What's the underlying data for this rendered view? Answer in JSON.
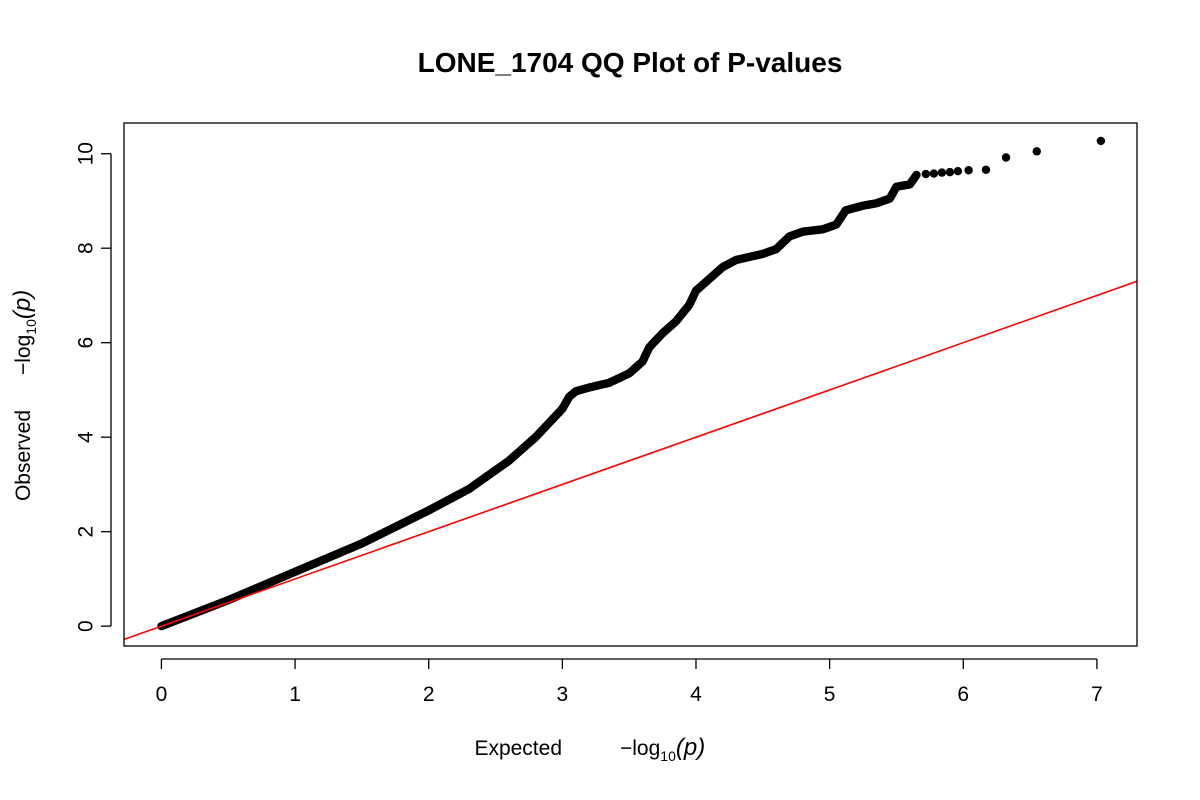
{
  "chart_data": {
    "type": "scatter",
    "title": "LONE_1704 QQ Plot of P-values",
    "xlabel": {
      "prefix": "Expected",
      "expr": "−log",
      "sub": "10",
      "arg": "(p)"
    },
    "ylabel": {
      "prefix": "Observed",
      "expr": "−log",
      "sub": "10",
      "arg": "(p)"
    },
    "xlim": [
      -0.28,
      7.3
    ],
    "ylim": [
      -0.42,
      10.65
    ],
    "xticks": [
      0,
      1,
      2,
      3,
      4,
      5,
      6,
      7
    ],
    "yticks": [
      0,
      2,
      4,
      6,
      8,
      10
    ],
    "grid": false,
    "point_color": "#000000",
    "reference_line": {
      "slope": 1,
      "intercept": 0,
      "color": "#ff0000"
    },
    "curve_points": [
      [
        0.0,
        0.0
      ],
      [
        0.5,
        0.55
      ],
      [
        1.0,
        1.15
      ],
      [
        1.5,
        1.75
      ],
      [
        2.0,
        2.45
      ],
      [
        2.3,
        2.9
      ],
      [
        2.6,
        3.5
      ],
      [
        2.8,
        4.0
      ],
      [
        3.0,
        4.6
      ],
      [
        3.05,
        4.85
      ],
      [
        3.1,
        4.97
      ],
      [
        3.2,
        5.05
      ],
      [
        3.35,
        5.15
      ],
      [
        3.5,
        5.35
      ],
      [
        3.6,
        5.6
      ],
      [
        3.65,
        5.9
      ],
      [
        3.75,
        6.2
      ],
      [
        3.85,
        6.45
      ],
      [
        3.95,
        6.8
      ],
      [
        4.0,
        7.1
      ],
      [
        4.1,
        7.35
      ],
      [
        4.2,
        7.6
      ],
      [
        4.3,
        7.75
      ],
      [
        4.5,
        7.88
      ],
      [
        4.6,
        7.98
      ],
      [
        4.7,
        8.25
      ],
      [
        4.8,
        8.35
      ],
      [
        4.95,
        8.4
      ],
      [
        5.05,
        8.5
      ],
      [
        5.12,
        8.8
      ],
      [
        5.25,
        8.9
      ],
      [
        5.35,
        8.95
      ],
      [
        5.45,
        9.05
      ],
      [
        5.5,
        9.3
      ],
      [
        5.6,
        9.35
      ],
      [
        5.65,
        9.55
      ]
    ],
    "tail_points": [
      [
        5.72,
        9.57
      ],
      [
        5.78,
        9.58
      ],
      [
        5.84,
        9.6
      ],
      [
        5.9,
        9.61
      ],
      [
        5.96,
        9.63
      ],
      [
        6.04,
        9.65
      ],
      [
        6.17,
        9.66
      ],
      [
        6.32,
        9.92
      ],
      [
        6.55,
        10.05
      ],
      [
        7.03,
        10.27
      ]
    ]
  }
}
